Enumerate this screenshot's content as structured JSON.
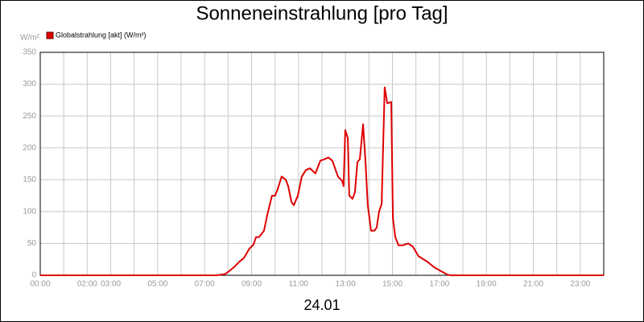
{
  "chart_data": {
    "type": "line",
    "title": "Sonneneinstrahlung [pro Tag]",
    "ylabel": "W/m²",
    "xlabel": "24.01",
    "grid": true,
    "legend": "top-left",
    "xlim": [
      0,
      24
    ],
    "ylim": [
      0,
      350
    ],
    "yticks": [
      0,
      50,
      100,
      150,
      200,
      250,
      300,
      350
    ],
    "xticks": [
      {
        "value": 0,
        "label": "00:00"
      },
      {
        "value": 1,
        "label": null
      },
      {
        "value": 2,
        "label": "02:00"
      },
      {
        "value": 3,
        "label": "03:00"
      },
      {
        "value": 4,
        "label": null
      },
      {
        "value": 5,
        "label": "05:00"
      },
      {
        "value": 6,
        "label": null
      },
      {
        "value": 7,
        "label": "07:00"
      },
      {
        "value": 8,
        "label": null
      },
      {
        "value": 9,
        "label": "09:00"
      },
      {
        "value": 10,
        "label": null
      },
      {
        "value": 11,
        "label": "11:00"
      },
      {
        "value": 12,
        "label": null
      },
      {
        "value": 13,
        "label": "13:00"
      },
      {
        "value": 14,
        "label": null
      },
      {
        "value": 15,
        "label": "15:00"
      },
      {
        "value": 16,
        "label": null
      },
      {
        "value": 17,
        "label": "17:00"
      },
      {
        "value": 18,
        "label": null
      },
      {
        "value": 19,
        "label": "19:00"
      },
      {
        "value": 20,
        "label": null
      },
      {
        "value": 21,
        "label": "21:00"
      },
      {
        "value": 22,
        "label": null
      },
      {
        "value": 23,
        "label": "23:00"
      }
    ],
    "x": [
      0,
      7.5,
      7.88,
      8.23,
      8.5,
      8.67,
      8.91,
      9.08,
      9.19,
      9.32,
      9.53,
      9.67,
      9.87,
      10.0,
      10.11,
      10.28,
      10.46,
      10.56,
      10.7,
      10.8,
      10.97,
      11.14,
      11.31,
      11.48,
      11.72,
      11.93,
      12.1,
      12.27,
      12.44,
      12.68,
      12.86,
      12.92,
      12.99,
      13.1,
      13.16,
      13.3,
      13.4,
      13.51,
      13.61,
      13.75,
      13.85,
      13.95,
      14.09,
      14.23,
      14.33,
      14.43,
      14.54,
      14.67,
      14.78,
      14.95,
      15.02,
      15.12,
      15.26,
      15.43,
      15.67,
      15.87,
      16.11,
      16.46,
      16.8,
      17.14,
      17.35,
      17.48,
      24
    ],
    "series": [
      {
        "name": "Globalstrahlung [akt] (W/m²)",
        "color": "#e00000",
        "values": [
          0,
          0,
          2,
          12,
          22,
          27,
          42,
          48,
          60,
          60,
          70,
          95,
          125,
          125,
          135,
          155,
          150,
          140,
          115,
          110,
          125,
          155,
          165,
          168,
          160,
          180,
          182,
          185,
          180,
          155,
          148,
          140,
          228,
          215,
          125,
          120,
          130,
          178,
          182,
          237,
          180,
          110,
          70,
          70,
          75,
          100,
          112,
          295,
          270,
          272,
          90,
          60,
          47,
          47,
          50,
          45,
          30,
          22,
          12,
          5,
          1,
          0,
          0
        ]
      }
    ]
  }
}
